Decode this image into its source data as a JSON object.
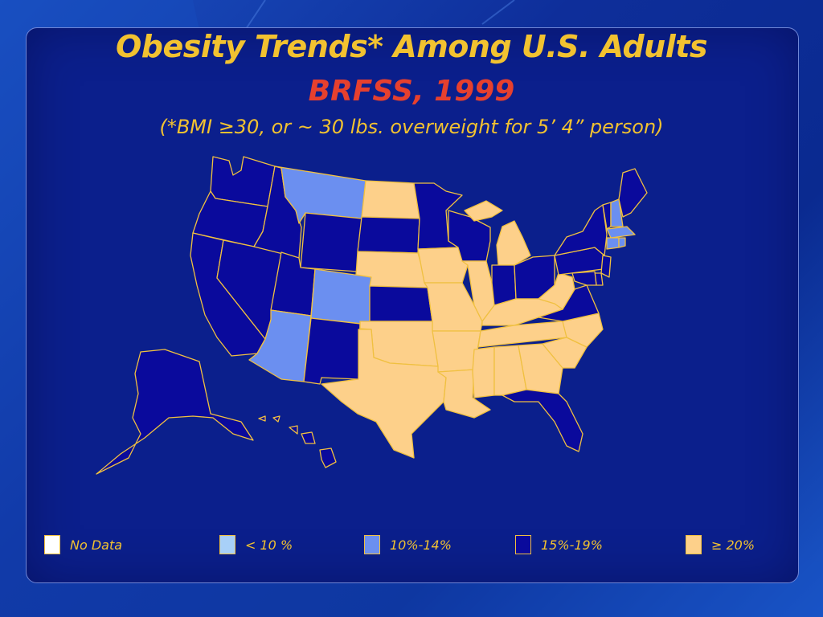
{
  "slide": {
    "title": "Obesity Trends* Among U.S. Adults",
    "subtitle": "BRFSS, 1999",
    "note": "(*BMI ≥30, or ~ 30 lbs. overweight for 5’ 4” person)"
  },
  "colors": {
    "no_data": "#ffffff",
    "lt10": "#a8d0f8",
    "c10_14": "#6b8ff0",
    "c15_19": "#0a0a9c",
    "ge20": "#fdd08a",
    "border": "#f0c040",
    "title": "#f2c230",
    "subtitle": "#e6402e"
  },
  "legend": [
    {
      "label": "No Data",
      "color": "#ffffff"
    },
    {
      "label": "< 10 %",
      "color": "#a8d0f8"
    },
    {
      "label": "10%-14%",
      "color": "#6b8ff0"
    },
    {
      "label": "15%-19%",
      "color": "#0a0a9c"
    },
    {
      "label": "≥ 20%",
      "color": "#fdd08a"
    }
  ],
  "states": {
    "WA": "15%-19%",
    "OR": "15%-19%",
    "CA": "15%-19%",
    "NV": "15%-19%",
    "ID": "15%-19%",
    "MT": "10%-14%",
    "WY": "15%-19%",
    "UT": "15%-19%",
    "AZ": "10%-14%",
    "CO": "10%-14%",
    "NM": "15%-19%",
    "ND": "≥ 20%",
    "SD": "15%-19%",
    "NE": "≥ 20%",
    "KS": "15%-19%",
    "OK": "≥ 20%",
    "TX": "≥ 20%",
    "MN": "15%-19%",
    "IA": "≥ 20%",
    "MO": "≥ 20%",
    "AR": "≥ 20%",
    "LA": "≥ 20%",
    "WI": "15%-19%",
    "IL": "≥ 20%",
    "MI": "≥ 20%",
    "IN": "15%-19%",
    "OH": "15%-19%",
    "KY": "≥ 20%",
    "TN": "≥ 20%",
    "MS": "≥ 20%",
    "AL": "≥ 20%",
    "GA": "≥ 20%",
    "FL": "15%-19%",
    "SC": "≥ 20%",
    "NC": "≥ 20%",
    "VA": "15%-19%",
    "WV": "≥ 20%",
    "PA": "15%-19%",
    "NY": "15%-19%",
    "VT": "15%-19%",
    "NH": "10%-14%",
    "ME": "15%-19%",
    "MA": "10%-14%",
    "CT": "10%-14%",
    "RI": "10%-14%",
    "NJ": "15%-19%",
    "DE": "15%-19%",
    "MD": "15%-19%",
    "AK": "15%-19%",
    "HI": "15%-19%"
  }
}
